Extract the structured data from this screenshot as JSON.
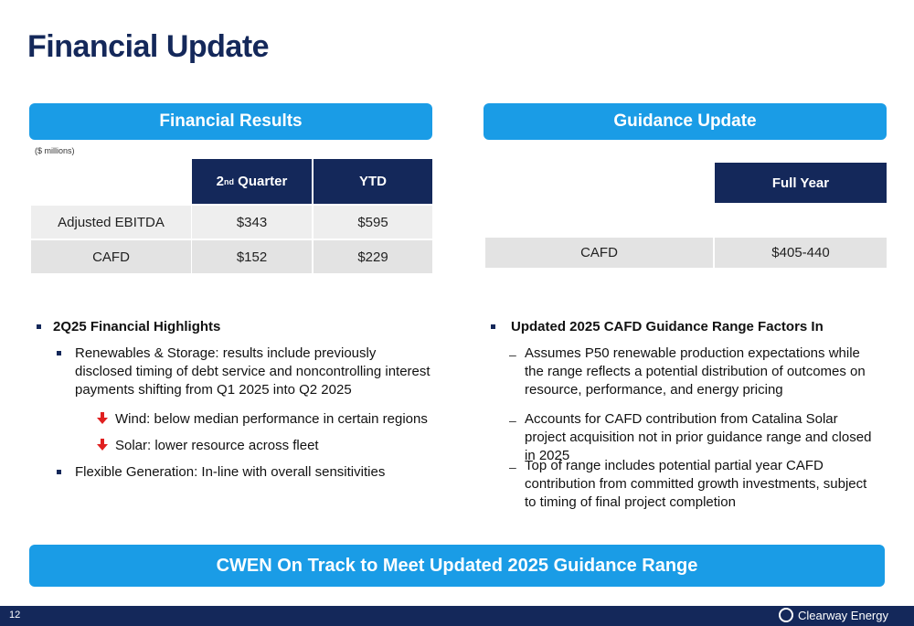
{
  "title": "Financial Update",
  "left": {
    "header": "Financial Results",
    "units": "($ millions)",
    "table": {
      "col1_main": "2",
      "col1_sup": "nd",
      "col1_rest": " Quarter",
      "col2": "YTD",
      "rows": [
        {
          "label": "Adjusted EBITDA",
          "q": "$343",
          "ytd": "$595"
        },
        {
          "label": "CAFD",
          "q": "$152",
          "ytd": "$229"
        }
      ]
    },
    "highlights_title": "2Q25 Financial Highlights",
    "item1": "Renewables & Storage: results include previously disclosed timing of debt service and noncontrolling interest payments shifting from Q1 2025 into Q2 2025",
    "sub1": "Wind: below median performance in certain regions",
    "sub2": "Solar: lower resource across fleet",
    "item2": "Flexible Generation: In-line with overall sensitivities"
  },
  "right": {
    "header": "Guidance Update",
    "col": "Full Year",
    "row_label": "CAFD",
    "row_value": "$405-440",
    "factors_title": "Updated 2025 CAFD Guidance Range Factors In",
    "dash1": "Assumes P50 renewable production expectations while the range reflects a potential distribution of outcomes on resource, performance, and energy pricing",
    "dash2": "Accounts for CAFD contribution from Catalina Solar project acquisition not in prior guidance range and closed in 2025",
    "dash3": "Top of range includes potential partial year CAFD contribution from committed growth investments, subject to timing of final project completion"
  },
  "banner": "CWEN On Track to Meet Updated 2025 Guidance Range",
  "footer": {
    "page": "12",
    "brand": "Clearway Energy"
  },
  "colors": {
    "navy": "#14285a",
    "accent": "#1a9ce6",
    "down_arrow": "#e02020"
  },
  "icons": [
    "down-arrow-icon",
    "square-bullet-icon",
    "clearway-logo-icon"
  ]
}
